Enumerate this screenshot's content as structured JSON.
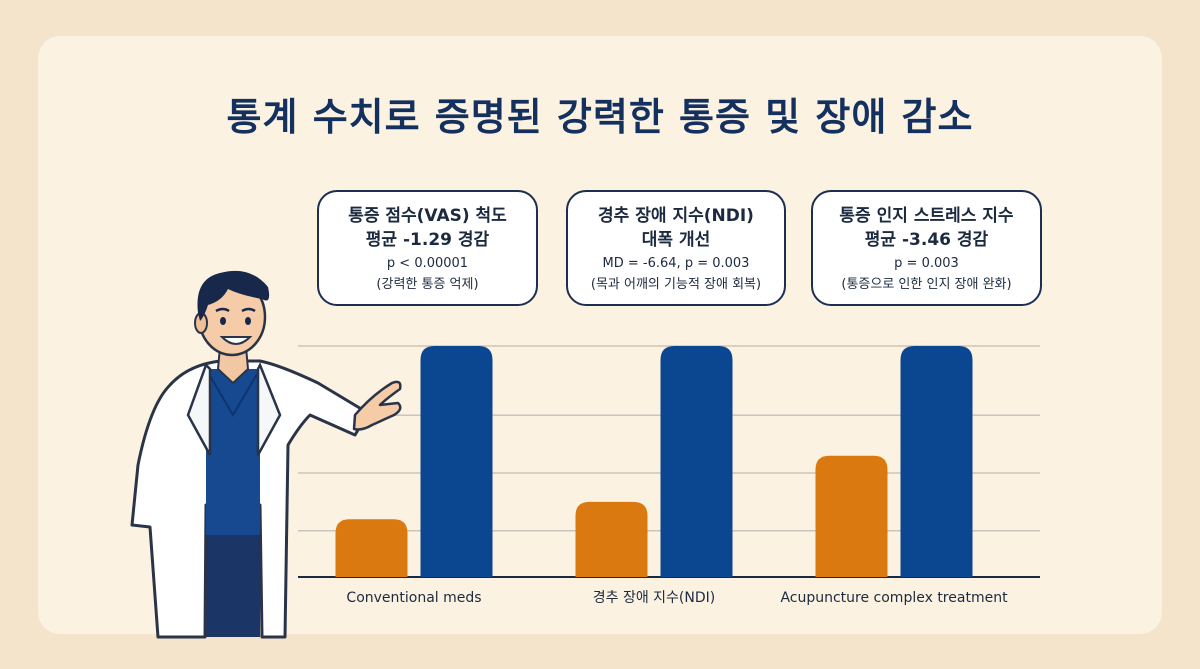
{
  "title": "통계 수치로 증명된 강력한 통증 및 장애 감소",
  "callouts": [
    {
      "heading1": "통증 점수(VAS) 척도",
      "heading2": "평균 -1.29 경감",
      "stat": "p < 0.00001",
      "note": "(강력한 통증 억제)"
    },
    {
      "heading1": "경추 장애 지수(NDI)",
      "heading2": "대폭 개선",
      "stat": "MD = -6.64, p = 0.003",
      "note": "(목과 어깨의 기능적 장애 회복)"
    },
    {
      "heading1": "통증 인지 스트레스 지수",
      "heading2": "평균 -3.46 경감",
      "stat": "p = 0.003",
      "note": "(통증으로 인한 인지 장애 완화)"
    }
  ],
  "colors": {
    "orange": "#d9790f",
    "blue": "#0b4790",
    "navy_text": "#14305e",
    "background": "#fbf2e2"
  },
  "chart_data": {
    "type": "bar",
    "categories": [
      "Conventional meds",
      "경추 장애 지수(NDI)",
      "Acupuncture complex treatment"
    ],
    "series": [
      {
        "color": "#d9790f",
        "values": [
          1.0,
          1.3,
          2.1
        ]
      },
      {
        "color": "#0b4790",
        "values": [
          4.0,
          4.0,
          4.0
        ]
      }
    ],
    "ylim": [
      0,
      4
    ],
    "grid": true
  }
}
